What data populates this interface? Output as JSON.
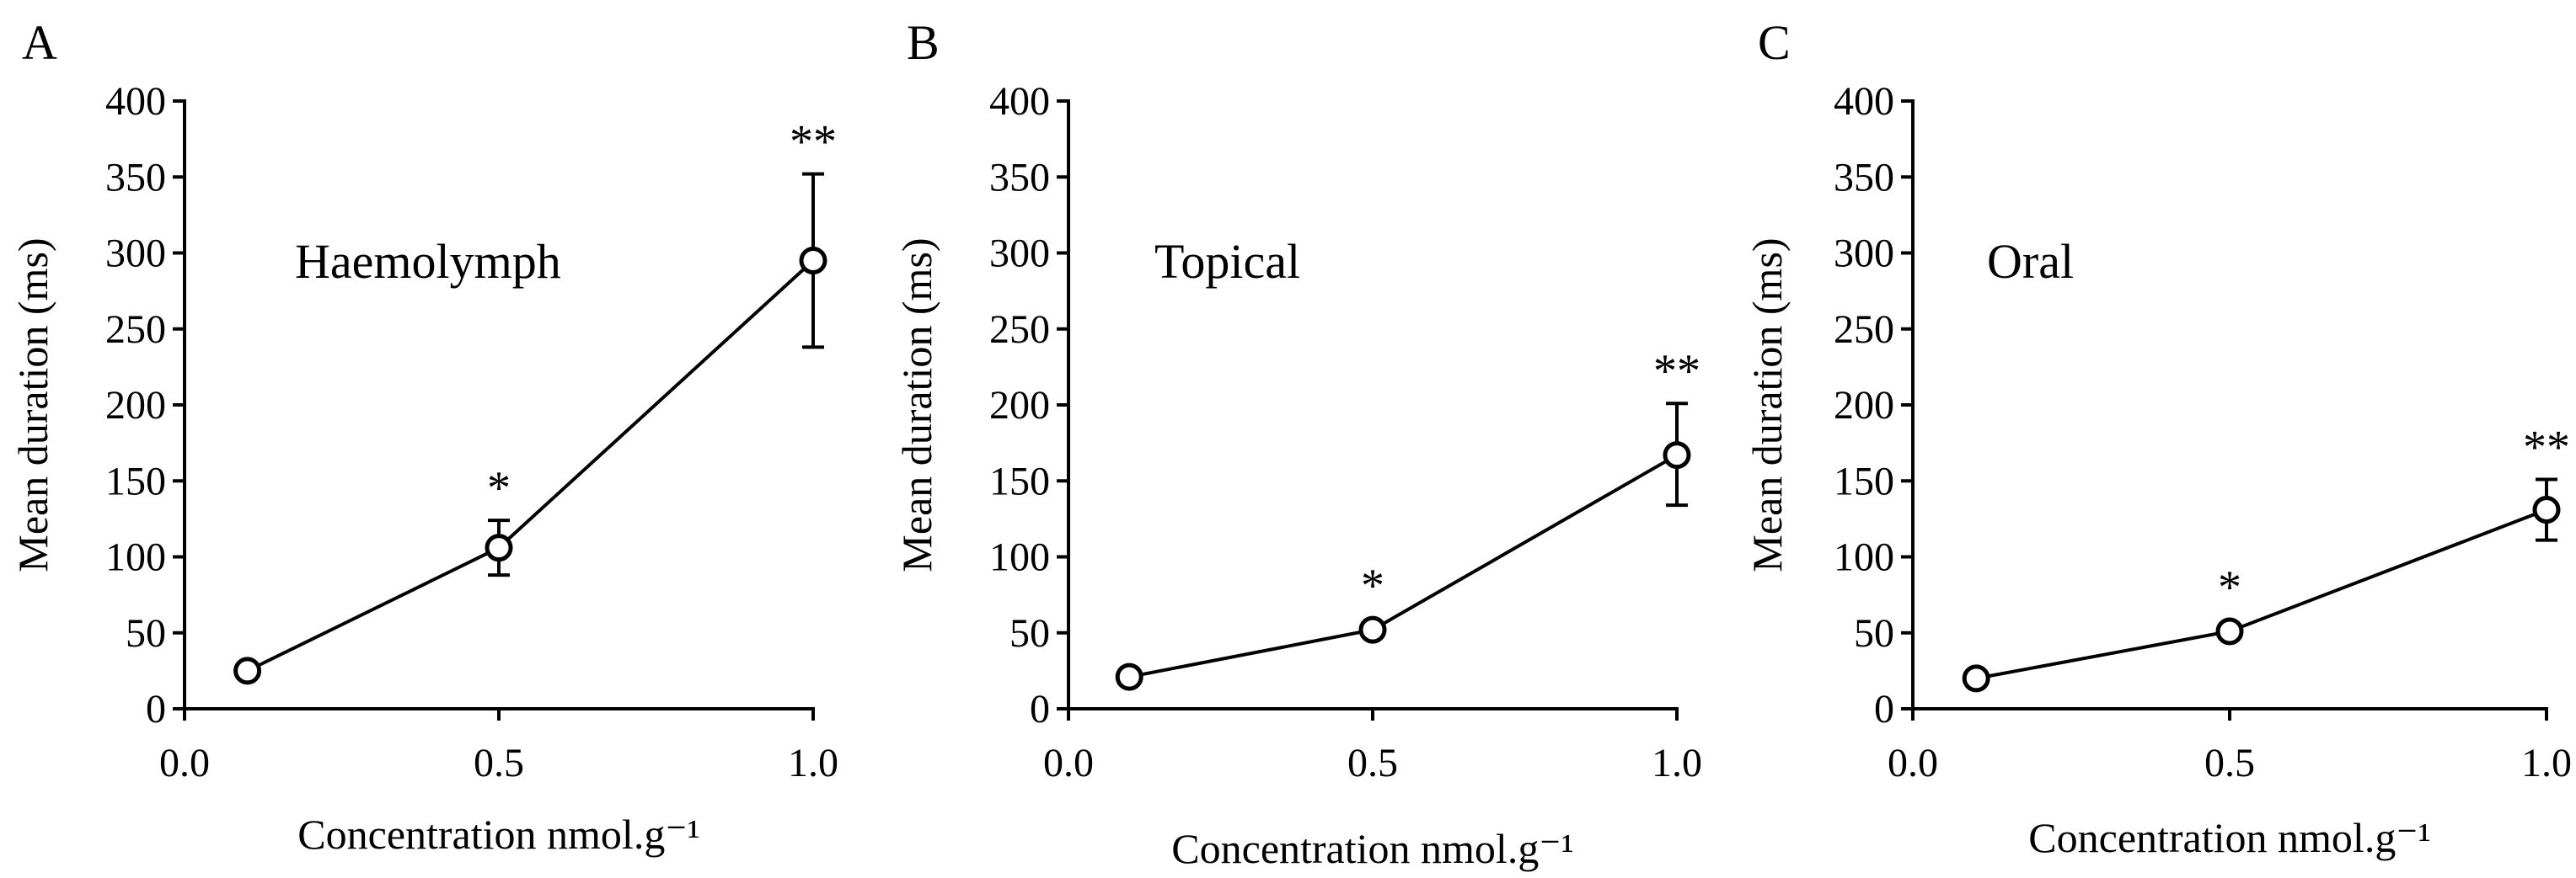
{
  "chart_data": [
    {
      "type": "line",
      "panel": "A",
      "annotation": "Haemolymph",
      "xlabel": "Concentration nmol.g⁻¹",
      "ylabel": "Mean duration (ms)",
      "xlim": [
        0.0,
        1.0
      ],
      "ylim": [
        0,
        400
      ],
      "xticks": [
        "0.0",
        "0.5",
        "1.0"
      ],
      "yticks": [
        "0",
        "50",
        "100",
        "150",
        "200",
        "250",
        "300",
        "350",
        "400"
      ],
      "x": [
        0.1,
        0.5,
        1.0
      ],
      "values": [
        25,
        106,
        295
      ],
      "error_upper": [
        25,
        124,
        352
      ],
      "error_lower": [
        25,
        88,
        238
      ],
      "significance": [
        "",
        "*",
        "**"
      ]
    },
    {
      "type": "line",
      "panel": "B",
      "annotation": "Topical",
      "xlabel": "Concentration nmol.g⁻¹",
      "ylabel": "Mean duration (ms)",
      "xlim": [
        0.0,
        1.0
      ],
      "ylim": [
        0,
        400
      ],
      "xticks": [
        "0.0",
        "0.5",
        "1.0"
      ],
      "yticks": [
        "0",
        "50",
        "100",
        "150",
        "200",
        "250",
        "300",
        "350",
        "400"
      ],
      "x": [
        0.1,
        0.5,
        1.0
      ],
      "values": [
        21,
        52,
        167
      ],
      "error_upper": [
        21,
        52,
        201
      ],
      "error_lower": [
        21,
        52,
        134
      ],
      "significance": [
        "",
        "*",
        "**"
      ]
    },
    {
      "type": "line",
      "panel": "C",
      "annotation": "Oral",
      "xlabel": "Concentration nmol.g⁻¹",
      "ylabel": "Mean duration (ms)",
      "xlim": [
        0.0,
        1.0
      ],
      "ylim": [
        0,
        400
      ],
      "xticks": [
        "0.0",
        "0.5",
        "1.0"
      ],
      "yticks": [
        "0",
        "50",
        "100",
        "150",
        "200",
        "250",
        "300",
        "350",
        "400"
      ],
      "x": [
        0.1,
        0.5,
        1.0
      ],
      "values": [
        20,
        51,
        131
      ],
      "error_upper": [
        20,
        51,
        151
      ],
      "error_lower": [
        20,
        51,
        111
      ],
      "significance": [
        "",
        "*",
        "**"
      ]
    }
  ]
}
